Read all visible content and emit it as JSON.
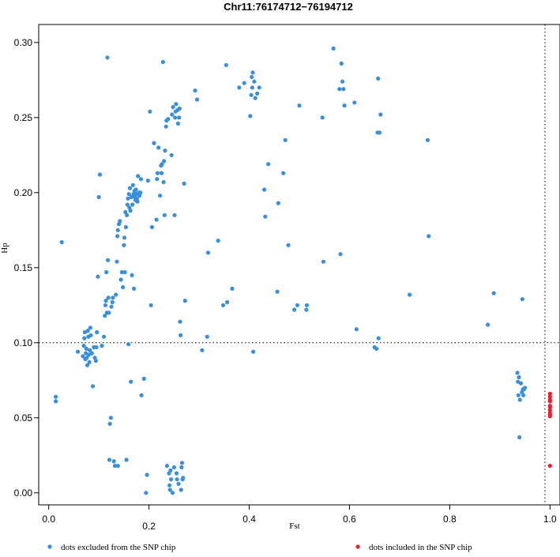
{
  "chart_data": {
    "type": "scatter",
    "title": "Chr11:76174712−76194712",
    "xlabel": "Fst",
    "ylabel": "Hp",
    "xlim": [
      -0.02,
      1.02
    ],
    "ylim": [
      -0.008,
      0.312
    ],
    "x_ticks": [
      {
        "value": 0.0,
        "label": "0.0"
      },
      {
        "value": 0.2,
        "label": "0.2"
      },
      {
        "value": 0.4,
        "label": "0.4"
      },
      {
        "value": 0.6,
        "label": "0.6"
      },
      {
        "value": 0.8,
        "label": "0.8"
      },
      {
        "value": 1.0,
        "label": "1.0"
      }
    ],
    "y_ticks": [
      {
        "value": 0.0,
        "label": "0.00"
      },
      {
        "value": 0.05,
        "label": "0.05"
      },
      {
        "value": 0.1,
        "label": "0.10"
      },
      {
        "value": 0.15,
        "label": "0.15"
      },
      {
        "value": 0.2,
        "label": "0.20"
      },
      {
        "value": 0.25,
        "label": "0.25"
      },
      {
        "value": 0.3,
        "label": "0.30"
      }
    ],
    "reference_lines": {
      "vertical_x": 0.99,
      "horizontal_y": 0.1
    },
    "grid": false,
    "legend_position": "bottom",
    "series": [
      {
        "name": "dots excluded from the SNP chip",
        "color": "#3b8fd9",
        "points": [
          [
            0.014,
            0.061
          ],
          [
            0.014,
            0.064
          ],
          [
            0.026,
            0.167
          ],
          [
            0.058,
            0.094
          ],
          [
            0.068,
            0.091
          ],
          [
            0.07,
            0.098
          ],
          [
            0.071,
            0.103
          ],
          [
            0.072,
            0.107
          ],
          [
            0.073,
            0.089
          ],
          [
            0.074,
            0.093
          ],
          [
            0.075,
            0.096
          ],
          [
            0.076,
            0.09
          ],
          [
            0.077,
            0.085
          ],
          [
            0.078,
            0.108
          ],
          [
            0.079,
            0.104
          ],
          [
            0.08,
            0.092
          ],
          [
            0.081,
            0.087
          ],
          [
            0.082,
            0.095
          ],
          [
            0.083,
            0.11
          ],
          [
            0.084,
            0.105
          ],
          [
            0.086,
            0.093
          ],
          [
            0.088,
            0.071
          ],
          [
            0.09,
            0.097
          ],
          [
            0.092,
            0.09
          ],
          [
            0.094,
            0.088
          ],
          [
            0.095,
            0.097
          ],
          [
            0.096,
            0.107
          ],
          [
            0.098,
            0.144
          ],
          [
            0.1,
            0.197
          ],
          [
            0.102,
            0.212
          ],
          [
            0.106,
            0.098
          ],
          [
            0.11,
            0.104
          ],
          [
            0.112,
            0.118
          ],
          [
            0.113,
            0.125
          ],
          [
            0.114,
            0.128
          ],
          [
            0.115,
            0.147
          ],
          [
            0.116,
            0.12
          ],
          [
            0.117,
            0.29
          ],
          [
            0.118,
            0.155
          ],
          [
            0.119,
            0.13
          ],
          [
            0.12,
            0.12
          ],
          [
            0.121,
            0.022
          ],
          [
            0.122,
            0.046
          ],
          [
            0.124,
            0.05
          ],
          [
            0.125,
            0.124
          ],
          [
            0.127,
            0.127
          ],
          [
            0.128,
            0.13
          ],
          [
            0.13,
            0.021
          ],
          [
            0.132,
            0.018
          ],
          [
            0.134,
            0.132
          ],
          [
            0.136,
            0.154
          ],
          [
            0.137,
            0.171
          ],
          [
            0.138,
            0.175
          ],
          [
            0.138,
            0.018
          ],
          [
            0.14,
            0.179
          ],
          [
            0.142,
            0.181
          ],
          [
            0.144,
            0.142
          ],
          [
            0.146,
            0.147
          ],
          [
            0.148,
            0.137
          ],
          [
            0.15,
            0.165
          ],
          [
            0.151,
            0.17
          ],
          [
            0.152,
            0.147
          ],
          [
            0.153,
            0.187
          ],
          [
            0.154,
            0.177
          ],
          [
            0.155,
            0.022
          ],
          [
            0.156,
            0.185
          ],
          [
            0.157,
            0.192
          ],
          [
            0.158,
            0.196
          ],
          [
            0.159,
            0.099
          ],
          [
            0.16,
            0.199
          ],
          [
            0.161,
            0.19
          ],
          [
            0.162,
            0.203
          ],
          [
            0.163,
            0.188
          ],
          [
            0.164,
            0.074
          ],
          [
            0.165,
            0.197
          ],
          [
            0.166,
            0.145
          ],
          [
            0.167,
            0.192
          ],
          [
            0.168,
            0.205
          ],
          [
            0.169,
            0.199
          ],
          [
            0.17,
            0.136
          ],
          [
            0.171,
            0.201
          ],
          [
            0.172,
            0.197
          ],
          [
            0.173,
            0.195
          ],
          [
            0.174,
            0.202
          ],
          [
            0.175,
            0.199
          ],
          [
            0.176,
            0.196
          ],
          [
            0.177,
            0.194
          ],
          [
            0.178,
            0.211
          ],
          [
            0.179,
            0.199
          ],
          [
            0.18,
            0.2
          ],
          [
            0.181,
            0.198
          ],
          [
            0.182,
            0.2
          ],
          [
            0.183,
            0.2
          ],
          [
            0.184,
            0.209
          ],
          [
            0.185,
            0.065
          ],
          [
            0.19,
            0.076
          ],
          [
            0.194,
            0.0
          ],
          [
            0.196,
            0.012
          ],
          [
            0.198,
            0.208
          ],
          [
            0.202,
            0.254
          ],
          [
            0.204,
            0.125
          ],
          [
            0.206,
            0.177
          ],
          [
            0.21,
            0.233
          ],
          [
            0.215,
            0.182
          ],
          [
            0.216,
            0.209
          ],
          [
            0.217,
            0.213
          ],
          [
            0.219,
            0.23
          ],
          [
            0.222,
            0.198
          ],
          [
            0.224,
            0.218
          ],
          [
            0.225,
            0.213
          ],
          [
            0.226,
            0.219
          ],
          [
            0.228,
            0.287
          ],
          [
            0.229,
            0.207
          ],
          [
            0.23,
            0.221
          ],
          [
            0.231,
            0.185
          ],
          [
            0.232,
            0.228
          ],
          [
            0.234,
            0.244
          ],
          [
            0.235,
            0.248
          ],
          [
            0.236,
            0.018
          ],
          [
            0.238,
            0.249
          ],
          [
            0.24,
            0.013
          ],
          [
            0.241,
            0.005
          ],
          [
            0.242,
            0.002
          ],
          [
            0.243,
            0.015
          ],
          [
            0.244,
            0.009
          ],
          [
            0.245,
            0.225
          ],
          [
            0.246,
            0.252
          ],
          [
            0.247,
            0.0
          ],
          [
            0.248,
            0.257
          ],
          [
            0.25,
            0.017
          ],
          [
            0.251,
            0.185
          ],
          [
            0.252,
            0.25
          ],
          [
            0.253,
            0.254
          ],
          [
            0.254,
            0.259
          ],
          [
            0.255,
            0.013
          ],
          [
            0.256,
            0.009
          ],
          [
            0.257,
            0.255
          ],
          [
            0.258,
            0.246
          ],
          [
            0.259,
            0.006
          ],
          [
            0.26,
            0.25
          ],
          [
            0.261,
            0.256
          ],
          [
            0.262,
            0.114
          ],
          [
            0.263,
            0.105
          ],
          [
            0.264,
            0.002
          ],
          [
            0.265,
            0.017
          ],
          [
            0.266,
            0.02
          ],
          [
            0.267,
            0.009
          ],
          [
            0.268,
            0.01
          ],
          [
            0.27,
            0.206
          ],
          [
            0.272,
            0.128
          ],
          [
            0.292,
            0.268
          ],
          [
            0.296,
            0.262
          ],
          [
            0.306,
            0.095
          ],
          [
            0.316,
            0.104
          ],
          [
            0.318,
            0.16
          ],
          [
            0.338,
            0.168
          ],
          [
            0.348,
            0.125
          ],
          [
            0.354,
            0.285
          ],
          [
            0.356,
            0.127
          ],
          [
            0.366,
            0.136
          ],
          [
            0.38,
            0.27
          ],
          [
            0.39,
            0.273
          ],
          [
            0.402,
            0.251
          ],
          [
            0.404,
            0.265
          ],
          [
            0.405,
            0.277
          ],
          [
            0.406,
            0.27
          ],
          [
            0.407,
            0.28
          ],
          [
            0.408,
            0.094
          ],
          [
            0.41,
            0.274
          ],
          [
            0.412,
            0.263
          ],
          [
            0.416,
            0.266
          ],
          [
            0.42,
            0.27
          ],
          [
            0.43,
            0.202
          ],
          [
            0.432,
            0.184
          ],
          [
            0.438,
            0.219
          ],
          [
            0.456,
            0.134
          ],
          [
            0.458,
            0.193
          ],
          [
            0.468,
            0.213
          ],
          [
            0.472,
            0.235
          ],
          [
            0.478,
            0.165
          ],
          [
            0.49,
            0.122
          ],
          [
            0.496,
            0.125
          ],
          [
            0.5,
            0.258
          ],
          [
            0.514,
            0.122
          ],
          [
            0.515,
            0.125
          ],
          [
            0.546,
            0.25
          ],
          [
            0.548,
            0.154
          ],
          [
            0.568,
            0.296
          ],
          [
            0.58,
            0.269
          ],
          [
            0.582,
            0.159
          ],
          [
            0.584,
            0.286
          ],
          [
            0.586,
            0.274
          ],
          [
            0.588,
            0.269
          ],
          [
            0.59,
            0.258
          ],
          [
            0.61,
            0.26
          ],
          [
            0.614,
            0.109
          ],
          [
            0.65,
            0.097
          ],
          [
            0.654,
            0.096
          ],
          [
            0.656,
            0.24
          ],
          [
            0.657,
            0.276
          ],
          [
            0.658,
            0.103
          ],
          [
            0.66,
            0.24
          ],
          [
            0.662,
            0.252
          ],
          [
            0.72,
            0.132
          ],
          [
            0.756,
            0.235
          ],
          [
            0.758,
            0.171
          ],
          [
            0.876,
            0.112
          ],
          [
            0.888,
            0.133
          ],
          [
            0.935,
            0.08
          ],
          [
            0.936,
            0.074
          ],
          [
            0.937,
            0.065
          ],
          [
            0.938,
            0.077
          ],
          [
            0.939,
            0.037
          ],
          [
            0.94,
            0.062
          ],
          [
            0.942,
            0.073
          ],
          [
            0.944,
            0.067
          ],
          [
            0.945,
            0.129
          ],
          [
            0.946,
            0.069
          ],
          [
            0.947,
            0.065
          ],
          [
            0.948,
            0.069
          ],
          [
            0.95,
            0.07
          ]
        ]
      },
      {
        "name": "dots included in the SNP chip",
        "color": "#ee1c2e",
        "points": [
          [
            1.0,
            0.066
          ],
          [
            1.0,
            0.064
          ],
          [
            1.0,
            0.062
          ],
          [
            1.0,
            0.061
          ],
          [
            1.0,
            0.058
          ],
          [
            1.0,
            0.057
          ],
          [
            1.0,
            0.055
          ],
          [
            1.0,
            0.053
          ],
          [
            1.0,
            0.052
          ],
          [
            1.0,
            0.051
          ],
          [
            1.0,
            0.018
          ]
        ]
      }
    ]
  }
}
